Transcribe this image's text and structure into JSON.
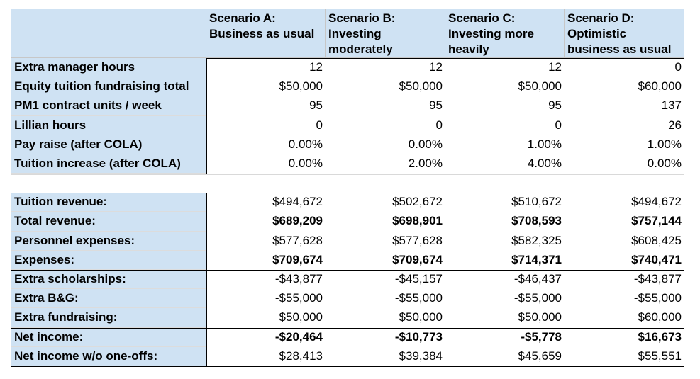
{
  "headers": [
    "",
    "Scenario A: Business as usual",
    "Scenario B: Investing moderately",
    "Scenario C: Investing more heavily",
    "Scenario D: Optimistic business as usual"
  ],
  "inputs": [
    {
      "label": "Extra manager hours",
      "values": [
        "12",
        "12",
        "12",
        "0"
      ]
    },
    {
      "label": "Equity tuition fundraising total",
      "values": [
        "$50,000",
        "$50,000",
        "$50,000",
        "$60,000"
      ]
    },
    {
      "label": "PM1 contract units / week",
      "values": [
        "95",
        "95",
        "95",
        "137"
      ]
    },
    {
      "label": "Lillian hours",
      "values": [
        "0",
        "0",
        "0",
        "26"
      ]
    },
    {
      "label": "Pay raise (after COLA)",
      "values": [
        "0.00%",
        "0.00%",
        "1.00%",
        "1.00%"
      ]
    },
    {
      "label": "Tuition increase (after COLA)",
      "values": [
        "0.00%",
        "2.00%",
        "4.00%",
        "0.00%"
      ]
    }
  ],
  "outputs": [
    {
      "label": "Tuition revenue:",
      "values": [
        "$494,672",
        "$502,672",
        "$510,672",
        "$494,672"
      ],
      "bold": false
    },
    {
      "label": "Total revenue:",
      "values": [
        "$689,209",
        "$698,901",
        "$708,593",
        "$757,144"
      ],
      "bold": true
    },
    {
      "label": "Personnel expenses:",
      "values": [
        "$577,628",
        "$577,628",
        "$582,325",
        "$608,425"
      ],
      "bold": false
    },
    {
      "label": "Expenses:",
      "values": [
        "$709,674",
        "$709,674",
        "$714,371",
        "$740,471"
      ],
      "bold": true
    },
    {
      "label": "Extra scholarships:",
      "values": [
        "-$43,877",
        "-$45,157",
        "-$46,437",
        "-$43,877"
      ],
      "bold": false
    },
    {
      "label": "Extra B&G:",
      "values": [
        "-$55,000",
        "-$55,000",
        "-$55,000",
        "-$55,000"
      ],
      "bold": false
    },
    {
      "label": "Extra fundraising:",
      "values": [
        "$50,000",
        "$50,000",
        "$50,000",
        "$60,000"
      ],
      "bold": false
    },
    {
      "label": "Net income:",
      "values": [
        "-$20,464",
        "-$10,773",
        "-$5,778",
        "$16,673"
      ],
      "bold": true
    },
    {
      "label": "Net income w/o one-offs:",
      "values": [
        "$28,413",
        "$39,384",
        "$45,659",
        "$55,551"
      ],
      "bold": false
    }
  ],
  "colors": {
    "header_fill": "#cfe2f3",
    "border": "#000000",
    "gridline": "#d9d9d9"
  }
}
